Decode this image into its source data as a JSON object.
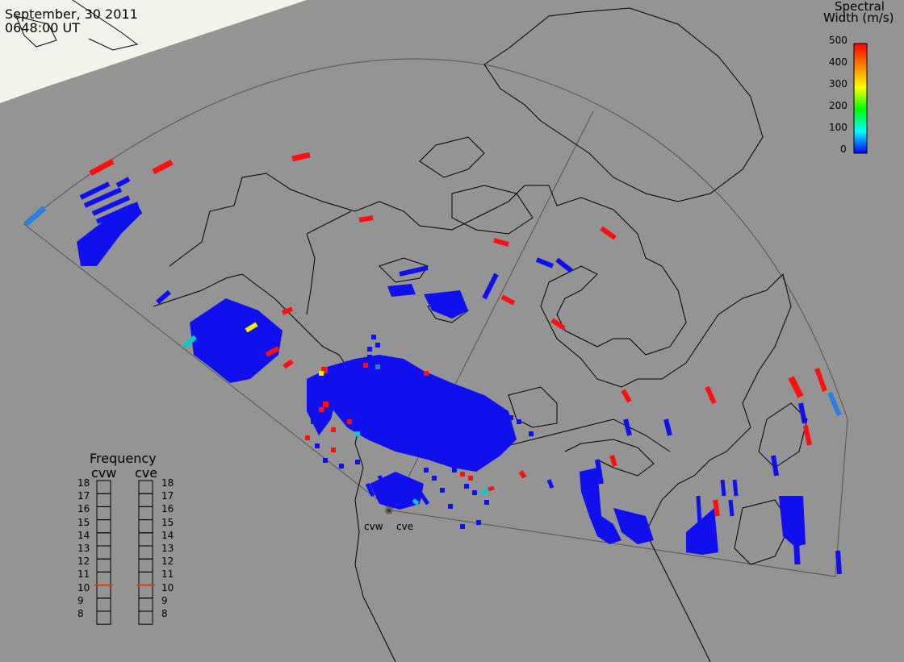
{
  "header": {
    "date": "September, 30 2011",
    "time": "0648:00 UT"
  },
  "colorbar": {
    "title_line1": "Spectral",
    "title_line2": "Width (m/s)",
    "ticks": [
      "500",
      "400",
      "300",
      "200",
      "100",
      "0"
    ],
    "colors": [
      "#ff0000",
      "#ff8000",
      "#ffff00",
      "#00ff00",
      "#00ffff",
      "#0000ff"
    ]
  },
  "frequency": {
    "title": "Frequency",
    "radar_left": "cvw",
    "radar_right": "cve",
    "ticks": [
      "18",
      "17",
      "16",
      "15",
      "14",
      "13",
      "12",
      "11",
      "10",
      "9",
      "8"
    ],
    "selected_left": 10.5,
    "selected_right": 10.5,
    "indicator_color": "#e04000"
  },
  "radars": {
    "west_label": "cvw",
    "east_label": "cve"
  },
  "map": {
    "background_color": "#949494",
    "daylight_color": "#f4f4ee",
    "land_outline_color": "#000000",
    "fov_outline_color": "#555555"
  }
}
